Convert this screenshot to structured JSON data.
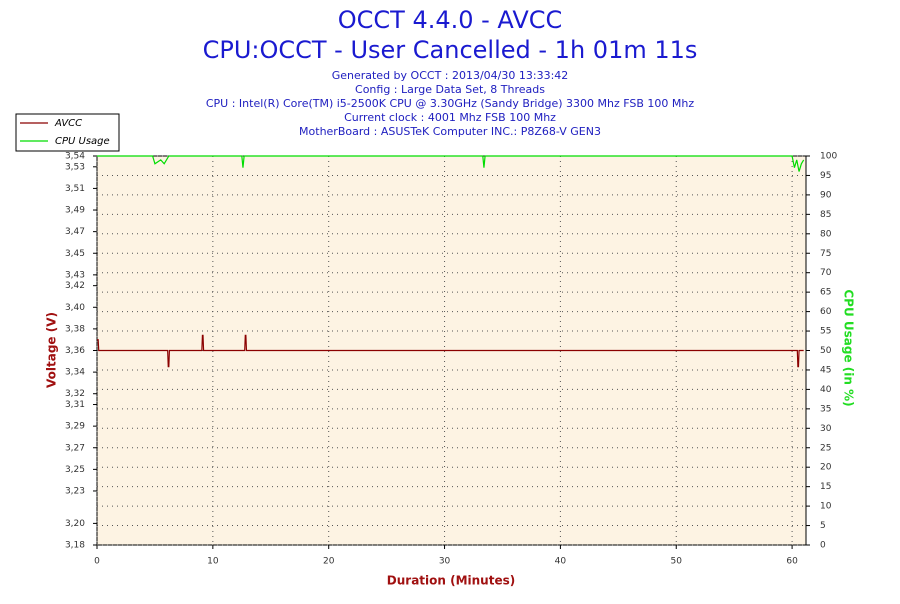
{
  "chart_data": {
    "type": "line",
    "title": "OCCT 4.4.0 - AVCC",
    "subtitle": "CPU:OCCT - User Cancelled - 1h 01m 11s",
    "annotations": [
      "Generated by OCCT : 2013/04/30 13:33:42",
      "Config : Large Data Set, 8 Threads",
      "CPU : Intel(R) Core(TM) i5-2500K CPU @ 3.30GHz (Sandy Bridge) 3300 Mhz FSB 100 Mhz",
      "Current clock : 4001 Mhz FSB 100 Mhz",
      "MotherBoard : ASUSTeK Computer INC.: P8Z68-V GEN3"
    ],
    "x_label": "Duration (Minutes)",
    "y_label": "Voltage (V)",
    "y2_label": "CPU Usage (in %)",
    "xlim": [
      0,
      61.2
    ],
    "xticks": [
      0,
      10,
      20,
      30,
      40,
      50,
      60
    ],
    "ylim": [
      3.18,
      3.54
    ],
    "yticks": [
      {
        "value": 3.18,
        "label": "3,18"
      },
      {
        "value": 3.2,
        "label": "3,20"
      },
      {
        "value": 3.23,
        "label": "3,23"
      },
      {
        "value": 3.25,
        "label": "3,25"
      },
      {
        "value": 3.27,
        "label": "3,27"
      },
      {
        "value": 3.29,
        "label": "3,29"
      },
      {
        "value": 3.31,
        "label": "3,31"
      },
      {
        "value": 3.32,
        "label": "3,32"
      },
      {
        "value": 3.34,
        "label": "3,34"
      },
      {
        "value": 3.36,
        "label": "3,36"
      },
      {
        "value": 3.38,
        "label": "3,38"
      },
      {
        "value": 3.4,
        "label": "3,40"
      },
      {
        "value": 3.42,
        "label": "3,42"
      },
      {
        "value": 3.43,
        "label": "3,43"
      },
      {
        "value": 3.45,
        "label": "3,45"
      },
      {
        "value": 3.47,
        "label": "3,47"
      },
      {
        "value": 3.49,
        "label": "3,49"
      },
      {
        "value": 3.51,
        "label": "3,51"
      },
      {
        "value": 3.53,
        "label": "3,53"
      },
      {
        "value": 3.54,
        "label": "3,54"
      }
    ],
    "y2lim": [
      0,
      100
    ],
    "y2ticks": [
      0,
      5,
      10,
      15,
      20,
      25,
      30,
      35,
      40,
      45,
      50,
      55,
      60,
      65,
      70,
      75,
      80,
      85,
      90,
      95,
      100
    ],
    "grid": true,
    "legend": "top-left",
    "series": [
      {
        "name": "AVCC",
        "color": "#8b0000",
        "x": [
          0,
          0.1,
          0.15,
          6.1,
          6.15,
          6.2,
          6.25,
          9.05,
          9.1,
          9.15,
          9.2,
          12.75,
          12.8,
          12.85,
          12.9,
          60.45,
          60.5,
          60.55,
          60.6,
          61
        ],
        "values": [
          3.37,
          3.37,
          3.36,
          3.36,
          3.345,
          3.345,
          3.36,
          3.36,
          3.374,
          3.374,
          3.36,
          3.36,
          3.374,
          3.374,
          3.36,
          3.36,
          3.345,
          3.345,
          3.36,
          3.36
        ]
      },
      {
        "name": "CPU Usage",
        "color": "#00dd00",
        "axis": "y2",
        "x": [
          0,
          2,
          4.8,
          5,
          5.5,
          5.8,
          6.2,
          8,
          12.5,
          12.6,
          12.7,
          20,
          33.3,
          33.4,
          33.5,
          45,
          60,
          60.2,
          60.4,
          60.6,
          60.8,
          61
        ],
        "values": [
          100,
          100,
          100,
          98,
          99,
          98,
          100,
          100,
          100,
          97,
          100,
          100,
          100,
          97,
          100,
          100,
          100,
          97,
          99,
          96,
          98,
          99
        ]
      }
    ]
  }
}
